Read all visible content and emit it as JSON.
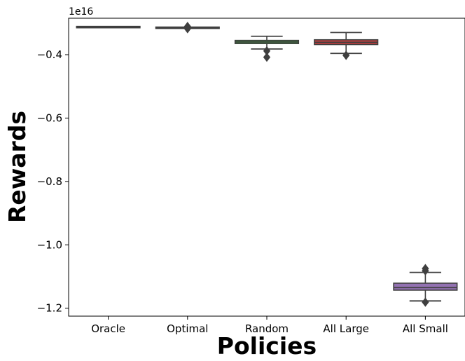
{
  "chart_data": {
    "type": "box",
    "xlabel": "Policies",
    "ylabel": "Rewards",
    "offset_label": "1e16",
    "y_scale_factor": 1e+16,
    "ylim": [
      -1.225,
      -0.285
    ],
    "yticks": [
      -0.4,
      -0.6,
      -0.8,
      -1.0,
      -1.2
    ],
    "ytick_labels": [
      "−0.4",
      "−0.6",
      "−0.8",
      "−1.0",
      "−1.2"
    ],
    "categories": [
      "Oracle",
      "Optimal",
      "Random",
      "All Large",
      "All Small"
    ],
    "boxes": [
      {
        "name": "Oracle",
        "color": "#3274a1",
        "whislo": -0.314,
        "q1": -0.3135,
        "med": -0.313,
        "q3": -0.3125,
        "whishi": -0.312,
        "fliers": []
      },
      {
        "name": "Optimal",
        "color": "#e1812c",
        "whislo": -0.316,
        "q1": -0.3155,
        "med": -0.315,
        "q3": -0.3145,
        "whishi": -0.314,
        "fliers": [
          -0.311,
          -0.318
        ]
      },
      {
        "name": "Random",
        "color": "#3a923a",
        "whislo": -0.382,
        "q1": -0.365,
        "med": -0.36,
        "q3": -0.355,
        "whishi": -0.342,
        "fliers": [
          -0.388,
          -0.408
        ]
      },
      {
        "name": "All Large",
        "color": "#c03d3e",
        "whislo": -0.396,
        "q1": -0.368,
        "med": -0.361,
        "q3": -0.353,
        "whishi": -0.33,
        "fliers": [
          -0.402
        ]
      },
      {
        "name": "All Small",
        "color": "#9372b2",
        "whislo": -1.177,
        "q1": -1.143,
        "med": -1.135,
        "q3": -1.121,
        "whishi": -1.087,
        "fliers": [
          -1.075,
          -1.082,
          -1.181
        ]
      }
    ],
    "grid": false,
    "legend": "none"
  }
}
